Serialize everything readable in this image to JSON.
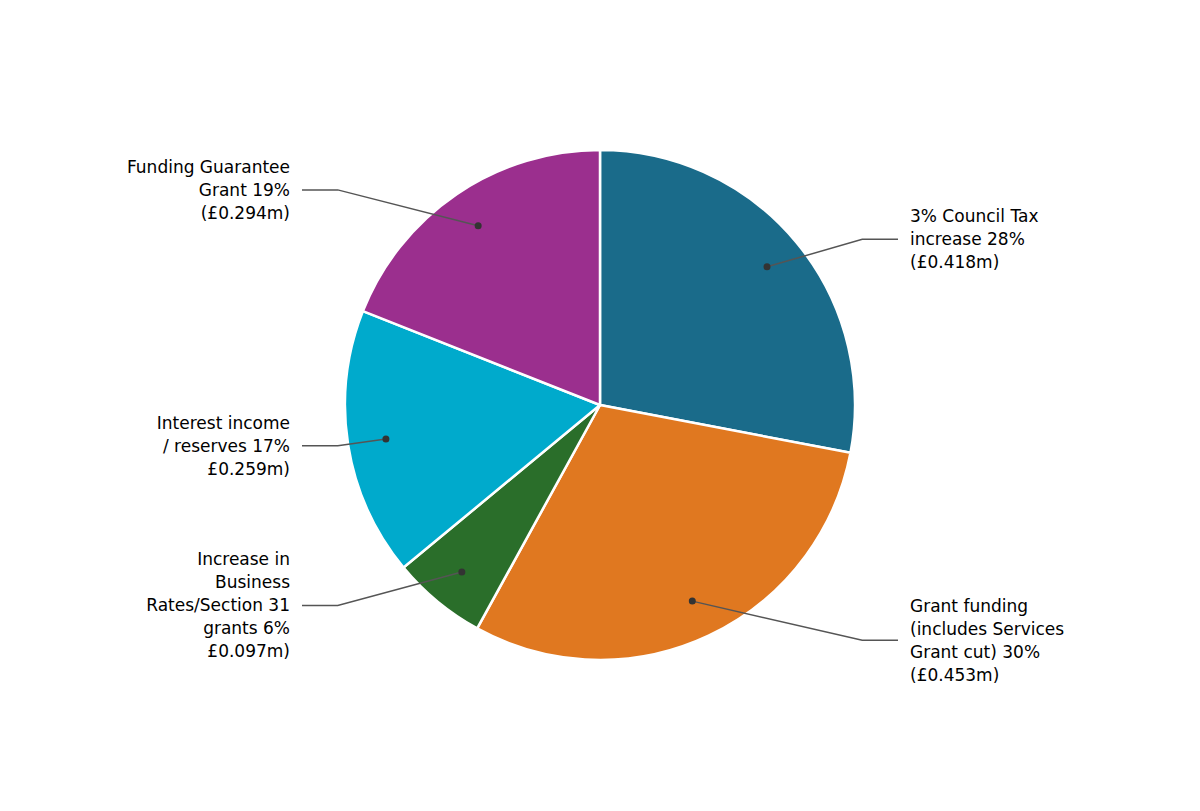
{
  "chart_data": {
    "type": "pie",
    "categories": [
      "3% Council Tax\nincrease 28%\n(£0.418m)",
      "Grant funding\n(includes Services\nGrant cut) 30%\n(£0.453m)",
      "Increase in\nBusiness\nRates/Section 31\ngrants 6%\n£0.097m)",
      "Interest income\n/ reserves 17%\n£0.259m)",
      "Funding Guarantee\nGrant 19%\n(£0.294m)"
    ],
    "values": [
      28,
      30,
      6,
      17,
      19
    ],
    "colors": [
      "#1a6b8a",
      "#e07820",
      "#2a6e2a",
      "#00aacc",
      "#9b2f8e"
    ]
  }
}
